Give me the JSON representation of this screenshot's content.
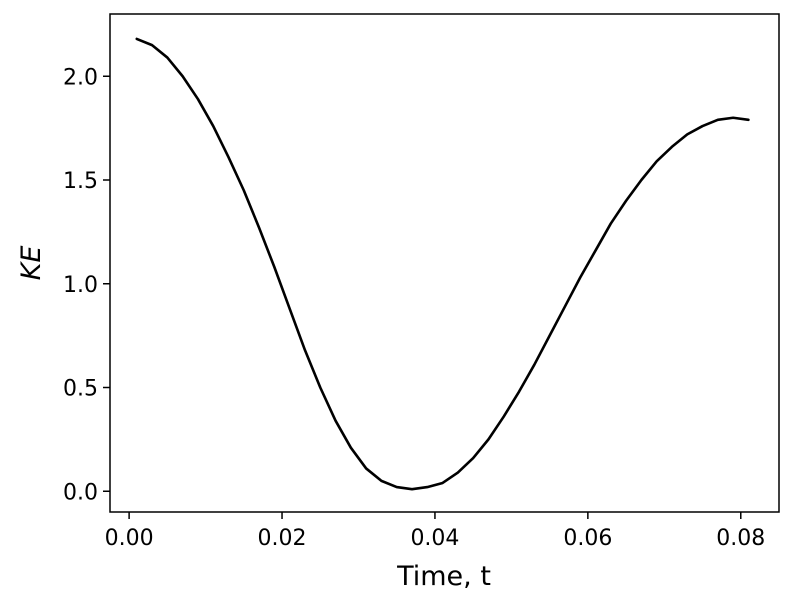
{
  "chart_data": {
    "type": "line",
    "title": "",
    "xlabel": "Time, t",
    "ylabel": "KE",
    "xlim": [
      -0.0025,
      0.085
    ],
    "ylim": [
      -0.1,
      2.3
    ],
    "xticks": [
      0.0,
      0.02,
      0.04,
      0.06,
      0.08
    ],
    "xtick_labels": [
      "0.00",
      "0.02",
      "0.04",
      "0.06",
      "0.08"
    ],
    "yticks": [
      0.0,
      0.5,
      1.0,
      1.5,
      2.0
    ],
    "ytick_labels": [
      "0.0",
      "0.5",
      "1.0",
      "1.5",
      "2.0"
    ],
    "grid": false,
    "line_color": "#000000",
    "series": [
      {
        "x": [
          0.001,
          0.003,
          0.005,
          0.007,
          0.009,
          0.011,
          0.013,
          0.015,
          0.017,
          0.019,
          0.021,
          0.023,
          0.025,
          0.027,
          0.029,
          0.031,
          0.033,
          0.035,
          0.037,
          0.039,
          0.041,
          0.043,
          0.045,
          0.047,
          0.049,
          0.051,
          0.053,
          0.055,
          0.057,
          0.059,
          0.061,
          0.063,
          0.065,
          0.067,
          0.069,
          0.071,
          0.073,
          0.075,
          0.077,
          0.079,
          0.081
        ],
        "y": [
          2.18,
          2.15,
          2.09,
          2.0,
          1.89,
          1.76,
          1.61,
          1.45,
          1.27,
          1.08,
          0.88,
          0.68,
          0.5,
          0.34,
          0.21,
          0.11,
          0.05,
          0.02,
          0.01,
          0.02,
          0.04,
          0.09,
          0.16,
          0.25,
          0.36,
          0.48,
          0.61,
          0.75,
          0.89,
          1.03,
          1.16,
          1.29,
          1.4,
          1.5,
          1.59,
          1.66,
          1.72,
          1.76,
          1.79,
          1.8,
          1.79
        ]
      }
    ]
  }
}
